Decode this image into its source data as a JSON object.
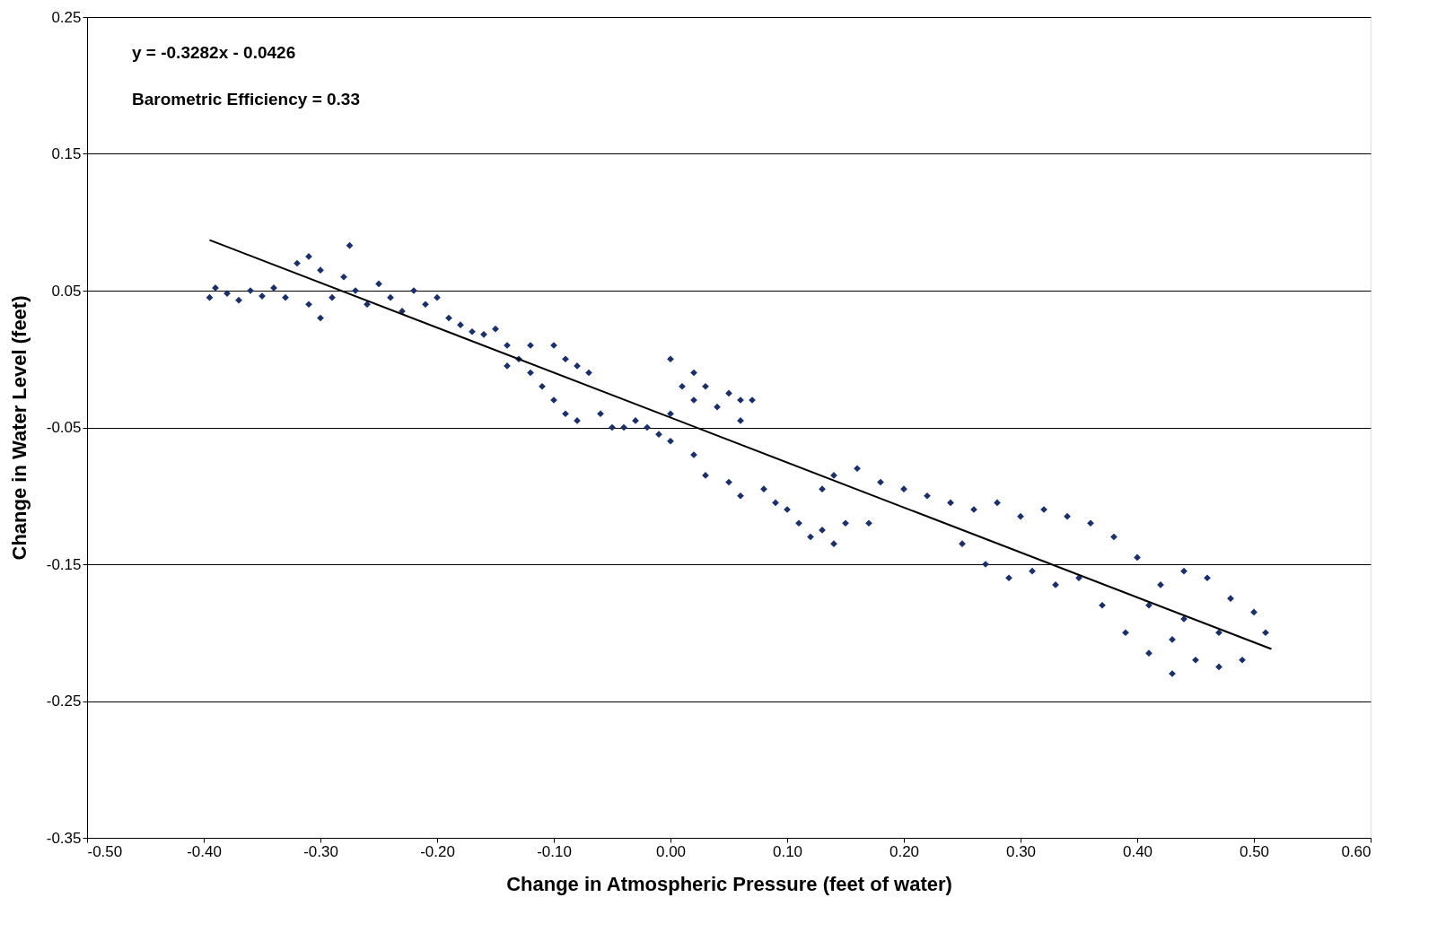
{
  "chart_data": {
    "type": "scatter",
    "xlabel": "Change in Atmospheric Pressure (feet of water)",
    "ylabel": "Change in Water Level (feet)",
    "annotations": [
      "y = -0.3282x - 0.0426",
      "Barometric Efficiency = 0.33"
    ],
    "xlim": [
      -0.5,
      0.6
    ],
    "xticks": [
      {
        "value": -0.5,
        "label": "-0.50"
      },
      {
        "value": -0.4,
        "label": "-0.40"
      },
      {
        "value": -0.3,
        "label": "-0.30"
      },
      {
        "value": -0.2,
        "label": "-0.20"
      },
      {
        "value": -0.1,
        "label": "-0.10"
      },
      {
        "value": 0,
        "label": "0.00"
      },
      {
        "value": 0.1,
        "label": "0.10"
      },
      {
        "value": 0.2,
        "label": "0.20"
      },
      {
        "value": 0.3,
        "label": "0.30"
      },
      {
        "value": 0.4,
        "label": "0.40"
      },
      {
        "value": 0.5,
        "label": "0.50"
      },
      {
        "value": 0.6,
        "label": "0.60"
      }
    ],
    "ylim": [
      -0.35,
      0.25
    ],
    "yticks": [
      {
        "value": -0.35,
        "label": "-0.35"
      },
      {
        "value": -0.25,
        "label": "-0.25"
      },
      {
        "value": -0.15,
        "label": "-0.15"
      },
      {
        "value": -0.05,
        "label": "-0.05"
      },
      {
        "value": 0.05,
        "label": "0.05"
      },
      {
        "value": 0.15,
        "label": "0.15"
      },
      {
        "value": 0.25,
        "label": "0.25"
      }
    ],
    "grid": "y",
    "series": [
      {
        "marker": "diamond",
        "color": "#1a2f6b",
        "x": [
          -0.395,
          -0.39,
          -0.38,
          -0.37,
          -0.36,
          -0.35,
          -0.34,
          -0.33,
          -0.32,
          -0.31,
          -0.3,
          -0.31,
          -0.3,
          -0.29,
          -0.28,
          -0.275,
          -0.27,
          -0.26,
          -0.25,
          -0.24,
          -0.23,
          -0.22,
          -0.21,
          -0.2,
          -0.19,
          -0.18,
          -0.17,
          -0.16,
          -0.15,
          -0.14,
          -0.13,
          -0.14,
          -0.12,
          -0.11,
          -0.12,
          -0.1,
          -0.09,
          -0.08,
          -0.07,
          -0.1,
          -0.09,
          -0.08,
          -0.06,
          -0.05,
          -0.04,
          -0.03,
          -0.02,
          -0.01,
          0.0,
          0.0,
          0.01,
          0.0,
          0.02,
          0.03,
          0.02,
          0.04,
          0.05,
          0.06,
          0.07,
          0.06,
          0.02,
          0.03,
          0.05,
          0.06,
          0.08,
          0.09,
          0.1,
          0.11,
          0.12,
          0.13,
          0.14,
          0.15,
          0.17,
          0.13,
          0.14,
          0.16,
          0.18,
          0.2,
          0.22,
          0.24,
          0.26,
          0.28,
          0.3,
          0.32,
          0.34,
          0.36,
          0.38,
          0.4,
          0.25,
          0.27,
          0.29,
          0.31,
          0.33,
          0.35,
          0.37,
          0.39,
          0.41,
          0.43,
          0.45,
          0.47,
          0.49,
          0.51,
          0.5,
          0.48,
          0.46,
          0.44,
          0.42,
          0.41,
          0.44,
          0.47,
          0.43
        ],
        "values": [
          0.045,
          0.052,
          0.048,
          0.043,
          0.05,
          0.046,
          0.052,
          0.045,
          0.07,
          0.075,
          0.065,
          0.04,
          0.03,
          0.045,
          0.06,
          0.083,
          0.05,
          0.04,
          0.055,
          0.045,
          0.035,
          0.05,
          0.04,
          0.045,
          0.03,
          0.025,
          0.02,
          0.018,
          0.022,
          0.01,
          0.0,
          -0.005,
          -0.01,
          -0.02,
          0.01,
          0.01,
          0.0,
          -0.005,
          -0.01,
          -0.03,
          -0.04,
          -0.045,
          -0.04,
          -0.05,
          -0.05,
          -0.045,
          -0.05,
          -0.055,
          -0.06,
          -0.04,
          -0.02,
          0.0,
          -0.01,
          -0.02,
          -0.03,
          -0.035,
          -0.025,
          -0.03,
          -0.03,
          -0.045,
          -0.07,
          -0.085,
          -0.09,
          -0.1,
          -0.095,
          -0.105,
          -0.11,
          -0.12,
          -0.13,
          -0.125,
          -0.135,
          -0.12,
          -0.12,
          -0.095,
          -0.085,
          -0.08,
          -0.09,
          -0.095,
          -0.1,
          -0.105,
          -0.11,
          -0.105,
          -0.115,
          -0.11,
          -0.115,
          -0.12,
          -0.13,
          -0.145,
          -0.135,
          -0.15,
          -0.16,
          -0.155,
          -0.165,
          -0.16,
          -0.18,
          -0.2,
          -0.215,
          -0.23,
          -0.22,
          -0.225,
          -0.22,
          -0.2,
          -0.185,
          -0.175,
          -0.16,
          -0.155,
          -0.165,
          -0.18,
          -0.19,
          -0.2,
          -0.205
        ]
      },
      {
        "type": "line",
        "line_style": "solid",
        "color": "#000000",
        "x": [
          -0.395,
          0.515
        ],
        "values": [
          0.087,
          -0.212
        ]
      }
    ]
  }
}
